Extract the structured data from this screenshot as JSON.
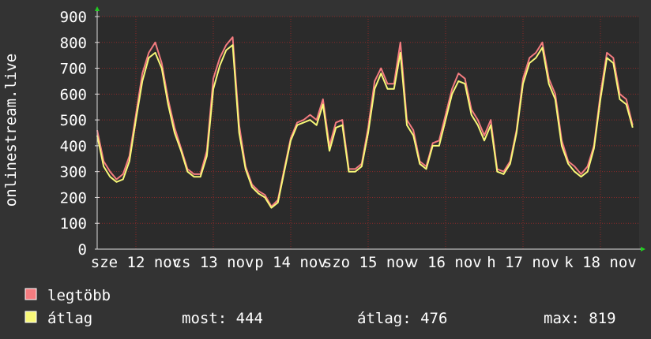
{
  "chart_data": {
    "type": "line",
    "y_label": "onlinestream.live",
    "x": [
      0,
      2,
      4,
      6,
      8,
      10,
      12,
      14,
      16,
      18,
      20,
      22,
      24,
      26,
      28,
      30,
      32,
      34,
      36,
      38,
      40,
      42,
      44,
      46,
      48,
      50,
      52,
      54,
      56,
      58,
      60,
      62,
      64,
      66,
      68,
      70,
      72,
      74,
      76,
      78,
      80,
      82,
      84,
      86,
      88,
      90,
      92,
      94,
      96,
      98,
      100,
      102,
      104,
      106,
      108,
      110,
      112,
      114,
      116,
      118,
      120,
      122,
      124,
      126,
      128,
      130,
      132,
      134,
      136,
      138,
      140,
      142,
      144,
      146,
      148,
      150,
      152,
      154,
      156,
      158,
      160,
      162,
      164,
      166
    ],
    "xlim": [
      0,
      168
    ],
    "xticks": [
      {
        "value": 12,
        "label": "sze 12 nov"
      },
      {
        "value": 36,
        "label": "cs 13 nov"
      },
      {
        "value": 60,
        "label": "p 14 nov"
      },
      {
        "value": 84,
        "label": "szo 15 nov"
      },
      {
        "value": 108,
        "label": "v 16 nov"
      },
      {
        "value": 132,
        "label": "h 17 nov"
      },
      {
        "value": 156,
        "label": "k 18 nov"
      }
    ],
    "ylim": [
      0,
      900
    ],
    "yticks": [
      0,
      100,
      200,
      300,
      400,
      500,
      600,
      700,
      800,
      900
    ],
    "grid": true,
    "series": [
      {
        "name": "legtöbb",
        "color": "#f47c80",
        "values": [
          460,
          340,
          300,
          270,
          290,
          360,
          520,
          680,
          760,
          800,
          720,
          580,
          470,
          390,
          310,
          290,
          290,
          380,
          660,
          740,
          790,
          820,
          480,
          320,
          250,
          225,
          210,
          165,
          190,
          310,
          430,
          490,
          500,
          520,
          500,
          580,
          400,
          490,
          500,
          310,
          310,
          330,
          470,
          650,
          700,
          640,
          640,
          800,
          500,
          460,
          340,
          320,
          410,
          420,
          520,
          620,
          680,
          660,
          540,
          500,
          440,
          500,
          310,
          300,
          340,
          460,
          660,
          740,
          760,
          800,
          660,
          600,
          420,
          340,
          320,
          290,
          320,
          400,
          600,
          760,
          740,
          600,
          580,
          480
        ]
      },
      {
        "name": "átlag",
        "color": "#f8f878",
        "values": [
          440,
          320,
          280,
          260,
          270,
          340,
          500,
          650,
          740,
          760,
          700,
          560,
          450,
          380,
          300,
          280,
          280,
          360,
          620,
          710,
          770,
          790,
          450,
          310,
          240,
          215,
          200,
          160,
          180,
          300,
          420,
          480,
          490,
          500,
          480,
          560,
          380,
          470,
          480,
          300,
          300,
          320,
          450,
          620,
          680,
          620,
          620,
          760,
          480,
          440,
          330,
          310,
          400,
          400,
          500,
          600,
          650,
          640,
          520,
          480,
          420,
          480,
          300,
          290,
          330,
          450,
          640,
          720,
          740,
          780,
          640,
          580,
          400,
          330,
          300,
          280,
          300,
          390,
          580,
          740,
          720,
          580,
          560,
          470
        ]
      }
    ],
    "stats": [
      "most: 444",
      "átlag: 476",
      "max: 819"
    ]
  }
}
